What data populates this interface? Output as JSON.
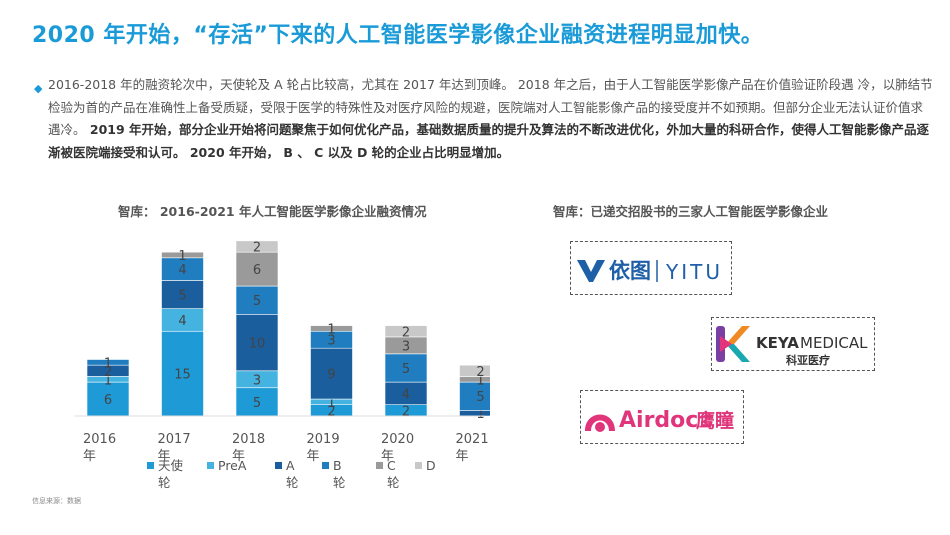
{
  "title": "2020 年开始，“存活”下来的人工智能医学影像企业融资进程明显加快。",
  "paragraph": {
    "part1": "2016-2018 年的融资轮次中，天使轮及 A 轮占比较高，尤其在 2017 年达到顶峰。 2018 年之后，由于人工智能医学影像产品在价值验证阶段遇 冷，以肺结节检验为首的产品在准确性上备受质疑，受限于医学的特殊性及对医疗风险的规避，医院端对人工智能影像产品的接受度并不如预期。但部分企业无法认证价值求遇冷。",
    "part2": " 2019 年开始，部分企业开始将问题聚焦于如何优化产品，基础数据质量的提升及算法的不断改进优化，外加大量的科研合作，使得人工智能影像产品逐渐被医院端接受和认可。 2020 年开始， B 、 C 以及 D 轮的企业占比明显增加。"
  },
  "chart_subtitle": "智库： 2016-2021 年人工智能医学影像企业融资情况",
  "logos_subtitle": "智库：已递交招股书的三家人工智能医学影像企业",
  "source": "信息来源：数据",
  "logos": {
    "yitu_cn": "依图",
    "yitu_en": "YITU",
    "keya_en1": "KEYA",
    "keya_en2": "MEDICAL",
    "keya_cn": "科亚医疗",
    "airdoc_en": "Airdoc",
    "airdoc_cn": "鹰瞳"
  },
  "colors": {
    "title": "#1a9bd7",
    "angel": "#1e9ad6",
    "prea": "#45b3e0",
    "a": "#1a5e9e",
    "b": "#1f7dc0",
    "c": "#9a9a9a",
    "d": "#c8c8c8",
    "yitu": "#1f5fa8",
    "keya_orange": "#f08a24",
    "keya_purple": "#7a3fa0",
    "keya_teal": "#19a8b0",
    "airdoc": "#e0357a"
  },
  "chart_data": {
    "type": "bar",
    "stacked": true,
    "categories": [
      "2016年",
      "2017年",
      "2018年",
      "2019年",
      "2020年",
      "2021年"
    ],
    "series": [
      {
        "name": "天使轮",
        "color": "#1e9ad6",
        "values": [
          6,
          15,
          5,
          2,
          2,
          0
        ]
      },
      {
        "name": "PreA",
        "color": "#45b3e0",
        "values": [
          1,
          4,
          3,
          1,
          0,
          0
        ]
      },
      {
        "name": "A轮",
        "color": "#1a5e9e",
        "values": [
          2,
          5,
          10,
          9,
          4,
          1
        ]
      },
      {
        "name": "B轮",
        "color": "#1f7dc0",
        "values": [
          1,
          4,
          5,
          3,
          5,
          5
        ]
      },
      {
        "name": "C轮",
        "color": "#9a9a9a",
        "values": [
          0,
          1,
          6,
          1,
          3,
          1
        ]
      },
      {
        "name": "D",
        "color": "#c8c8c8",
        "values": [
          0,
          0,
          2,
          0,
          2,
          2
        ]
      }
    ],
    "legend_position": "bottom",
    "grid": false
  }
}
